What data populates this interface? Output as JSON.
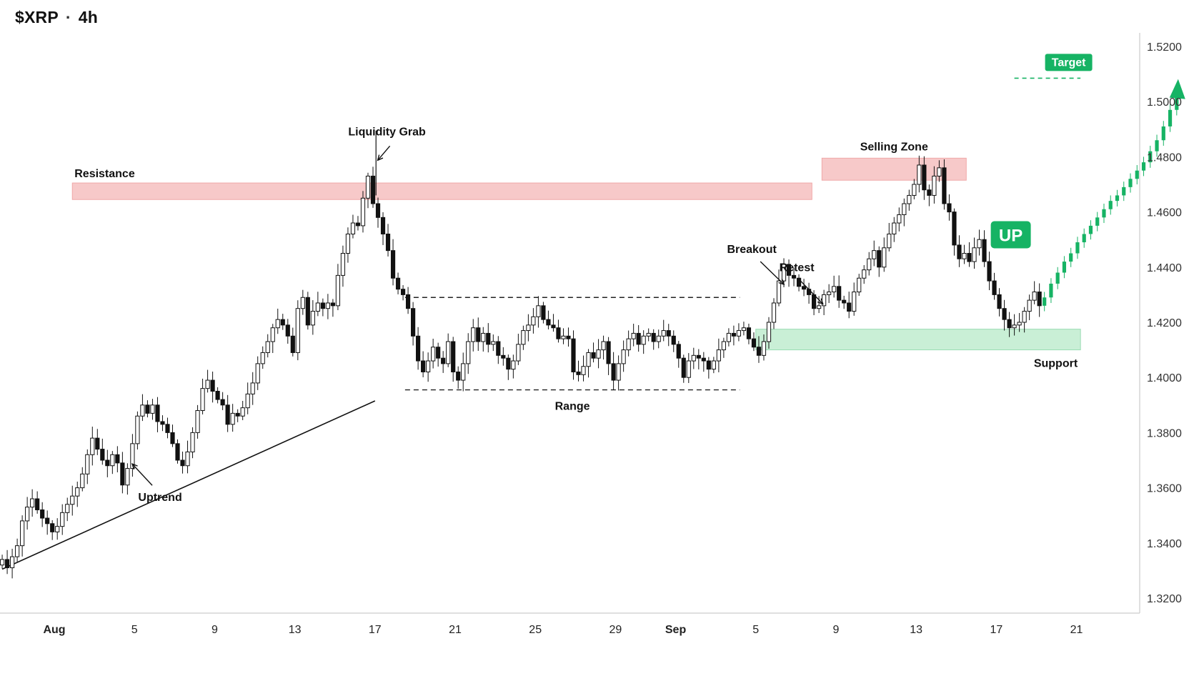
{
  "header": {
    "symbol": "$XRP",
    "separator": "·",
    "timeframe": "4h"
  },
  "colors": {
    "up_candle": "#ffffff",
    "down_candle": "#111111",
    "projection": "#16b364",
    "resistance_zone": "#f7c9c9",
    "support_zone": "#c9efd6",
    "target_badge": "#16b364",
    "axis_line": "#cccccc"
  },
  "chart_data": {
    "type": "candlestick",
    "ylim": [
      1.31,
      1.53
    ],
    "y_ticks": [
      "1.5200",
      "1.5000",
      "1.4800",
      "1.4600",
      "1.4400",
      "1.4200",
      "1.4000",
      "1.3800",
      "1.3600",
      "1.3400",
      "1.3200"
    ],
    "x_ticks": [
      "Aug",
      "5",
      "9",
      "13",
      "17",
      "21",
      "25",
      "29",
      "Sep",
      "5",
      "9",
      "13",
      "17",
      "21"
    ],
    "x_tick_bold": [
      true,
      false,
      false,
      false,
      false,
      false,
      false,
      false,
      true,
      false,
      false,
      false,
      false,
      false
    ],
    "x_tick_days": [
      0,
      4,
      8,
      12,
      16,
      20,
      24,
      28,
      31,
      35,
      39,
      43,
      47,
      51
    ],
    "candles_per_day": 4,
    "first_candle_day": -2.6,
    "closes": [
      1.334,
      1.331,
      1.335,
      1.339,
      1.348,
      1.353,
      1.356,
      1.352,
      1.349,
      1.347,
      1.344,
      1.346,
      1.351,
      1.354,
      1.357,
      1.36,
      1.365,
      1.372,
      1.378,
      1.374,
      1.37,
      1.368,
      1.372,
      1.369,
      1.361,
      1.367,
      1.376,
      1.386,
      1.39,
      1.387,
      1.39,
      1.384,
      1.383,
      1.38,
      1.376,
      1.37,
      1.368,
      1.373,
      1.38,
      1.388,
      1.396,
      1.399,
      1.395,
      1.392,
      1.39,
      1.383,
      1.387,
      1.386,
      1.389,
      1.394,
      1.398,
      1.405,
      1.409,
      1.413,
      1.418,
      1.421,
      1.419,
      1.415,
      1.409,
      1.425,
      1.429,
      1.419,
      1.424,
      1.427,
      1.425,
      1.427,
      1.426,
      1.437,
      1.445,
      1.452,
      1.456,
      1.455,
      1.465,
      1.473,
      1.463,
      1.458,
      1.452,
      1.446,
      1.436,
      1.432,
      1.43,
      1.425,
      1.415,
      1.406,
      1.402,
      1.406,
      1.411,
      1.407,
      1.405,
      1.413,
      1.402,
      1.399,
      1.405,
      1.413,
      1.418,
      1.413,
      1.416,
      1.412,
      1.413,
      1.408,
      1.407,
      1.403,
      1.406,
      1.412,
      1.417,
      1.419,
      1.422,
      1.426,
      1.421,
      1.419,
      1.418,
      1.414,
      1.415,
      1.414,
      1.402,
      1.401,
      1.404,
      1.409,
      1.407,
      1.41,
      1.413,
      1.405,
      1.399,
      1.405,
      1.41,
      1.414,
      1.416,
      1.412,
      1.415,
      1.416,
      1.413,
      1.415,
      1.417,
      1.415,
      1.412,
      1.407,
      1.4,
      1.406,
      1.408,
      1.407,
      1.406,
      1.403,
      1.406,
      1.41,
      1.413,
      1.416,
      1.415,
      1.417,
      1.418,
      1.414,
      1.411,
      1.408,
      1.413,
      1.42,
      1.427,
      1.435,
      1.441,
      1.437,
      1.436,
      1.433,
      1.432,
      1.43,
      1.425,
      1.426,
      1.43,
      1.431,
      1.433,
      1.428,
      1.427,
      1.424,
      1.431,
      1.436,
      1.439,
      1.443,
      1.446,
      1.44,
      1.447,
      1.452,
      1.456,
      1.459,
      1.463,
      1.466,
      1.47,
      1.477,
      1.468,
      1.466,
      1.473,
      1.476,
      1.463,
      1.46,
      1.448,
      1.443,
      1.445,
      1.442,
      1.447,
      1.45,
      1.442,
      1.435,
      1.43,
      1.425,
      1.421,
      1.418,
      1.419,
      1.42,
      1.424,
      1.428,
      1.431,
      1.426
    ],
    "projection_closes": [
      1.429,
      1.434,
      1.438,
      1.442,
      1.445,
      1.449,
      1.452,
      1.455,
      1.458,
      1.461,
      1.464,
      1.466,
      1.469,
      1.472,
      1.475,
      1.478,
      1.482,
      1.486,
      1.491,
      1.497,
      1.503
    ],
    "zones": [
      {
        "name": "Resistance",
        "label": "Resistance",
        "y_top": 1.4705,
        "y_bottom": 1.4645,
        "day_start": 0.9,
        "day_end": 37.8,
        "kind": "resistance"
      },
      {
        "name": "Selling Zone",
        "label": "Selling Zone",
        "y_top": 1.4795,
        "y_bottom": 1.4715,
        "day_start": 38.3,
        "day_end": 45.5,
        "kind": "resistance"
      },
      {
        "name": "Support",
        "label": "Support",
        "y_top": 1.4175,
        "y_bottom": 1.41,
        "day_start": 35.0,
        "day_end": 51.2,
        "kind": "support"
      }
    ],
    "levels": [
      {
        "label": "Target",
        "y": 1.5085,
        "day_start": 47.9,
        "day_end": 50.2
      },
      {
        "label": "Range",
        "range_top": 1.429,
        "range_bottom": 1.3955,
        "day_start": 17.5,
        "day_end": 34.2
      }
    ],
    "trendline": {
      "label": "Uptrend",
      "from": {
        "day": -2.6,
        "y": 1.3305
      },
      "to": {
        "day": 16.0,
        "y": 1.3915
      }
    },
    "annotations": [
      {
        "text": "Liquidity Grab",
        "day": 16.1,
        "y": 1.4865
      },
      {
        "text": "Breakout",
        "day": 34.8,
        "y": 1.4415
      },
      {
        "text": "Retest",
        "day": 37.1,
        "y": 1.4365
      },
      {
        "text": "Uptrend",
        "day": 5.1,
        "y": 1.3645
      },
      {
        "text": "UP",
        "day": 47.9,
        "y": 1.452
      }
    ]
  }
}
